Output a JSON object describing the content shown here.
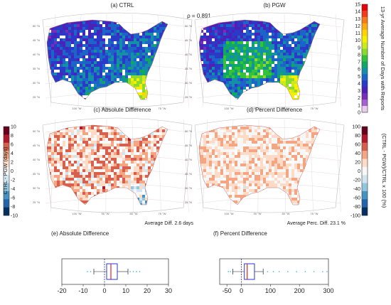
{
  "rho_label": "ρ = 0.891",
  "panels": {
    "a": {
      "title": "(a) CTRL"
    },
    "b": {
      "title": "(b) PGW"
    },
    "c": {
      "title": "(c) Absolute Difference",
      "note": "Average Diff. 2.6 days"
    },
    "d": {
      "title": "(d) Percent Difference",
      "note": "Average Perc. Diff. 23.1 %"
    },
    "e": {
      "title": "(e) Absolute Difference"
    },
    "f": {
      "title": "(f) Percent Difference"
    }
  },
  "colorbars": {
    "days": {
      "label": "13-yr Average Number of Days with Reports",
      "ticks": [
        "15",
        "14",
        "13",
        "12",
        "11",
        "10",
        "9",
        "8",
        "7",
        "6",
        "5",
        "4",
        "3",
        "2",
        "1",
        "0"
      ],
      "colors": [
        "#e8000b",
        "#f23b1a",
        "#f97a1a",
        "#fcab12",
        "#ffd400",
        "#f6f000",
        "#c9ea1b",
        "#8dd82f",
        "#33c23a",
        "#10a765",
        "#138fa8",
        "#1c64c8",
        "#2b39c8",
        "#4b21b8",
        "#7a2db8",
        "#a85fcf",
        "#e8cdf0"
      ]
    },
    "absdiff": {
      "label": "CTRL - PGW (days)",
      "ticks": [
        "10",
        "8",
        "6",
        "4",
        "2",
        "0",
        "-2",
        "-4",
        "-6",
        "-8",
        "-10"
      ],
      "colors": [
        "#67001f",
        "#b2182b",
        "#d6604d",
        "#f4a582",
        "#fddbc7",
        "#f7f7f7",
        "#d1e5f0",
        "#92c5de",
        "#4393c3",
        "#2166ac",
        "#053061"
      ]
    },
    "pctdiff": {
      "label": "(CTRL - PGW)/CTRL x 100 (%)",
      "ticks": [
        "100",
        "80",
        "60",
        "40",
        "20",
        "0",
        "-20",
        "-40",
        "-60",
        "-80",
        "-100"
      ]
    }
  },
  "map_labels": {
    "lat": [
      "50 °N",
      "45 °N",
      "40 °N",
      "35 °N",
      "30 °N",
      "25 °N"
    ],
    "lon_top": [
      "110 °W",
      "100 °W",
      "90 °W",
      "80 °W",
      "70 °W"
    ],
    "lon_bottom": [
      "100 °W",
      "90 °W",
      "80 °W",
      "75 °W"
    ]
  },
  "boxplots": {
    "e": {
      "axis_ticks": [
        "-20",
        "-10",
        "0",
        "10",
        "20",
        "30"
      ],
      "xlim": [
        -20,
        30
      ],
      "whisker_low": -5,
      "q1": 1,
      "median": 3,
      "mean": 2.6,
      "q3": 6,
      "whisker_high": 11,
      "outliers_low": [
        -8,
        -6.5
      ],
      "outliers_high": [
        12,
        13.5,
        15,
        16.5
      ]
    },
    "f": {
      "axis_ticks": [
        "-50",
        "0",
        "100",
        "200",
        "300"
      ],
      "xlim": [
        -75,
        300
      ],
      "whisker_low": -30,
      "q1": 10,
      "median": 20,
      "mean": 23.1,
      "q3": 45,
      "whisker_high": 75,
      "outliers_low": [
        -45,
        -38
      ],
      "outliers_high": [
        90,
        110,
        130,
        160,
        190,
        220,
        250,
        280,
        295
      ]
    }
  }
}
